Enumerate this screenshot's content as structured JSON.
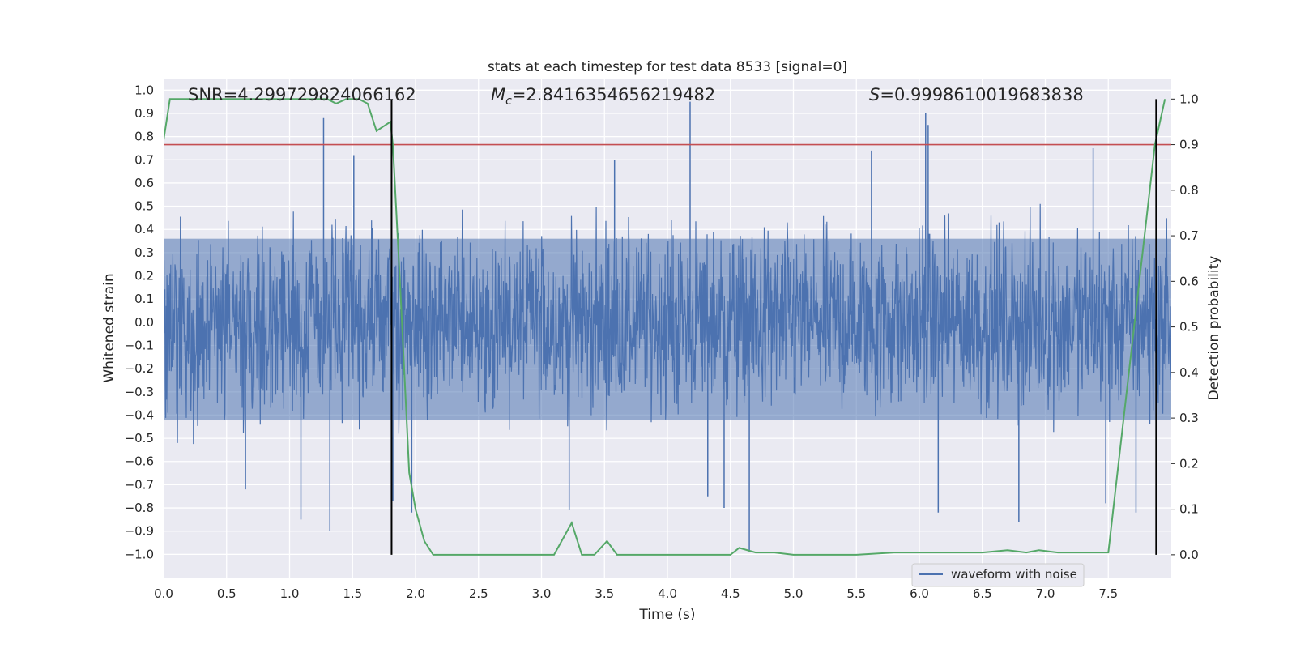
{
  "chart_data": {
    "type": "line",
    "title": "stats at each timestep for test data 8533 [signal=0]",
    "xlabel": "Time (s)",
    "ylabel": "Whitened strain",
    "y2label": "Detection probability",
    "xlim": [
      0.0,
      8.0
    ],
    "ylim": [
      -1.1,
      1.05
    ],
    "y2lim": [
      -0.05,
      1.045
    ],
    "xticks": [
      0.0,
      0.5,
      1.0,
      1.5,
      2.0,
      2.5,
      3.0,
      3.5,
      4.0,
      4.5,
      5.0,
      5.5,
      6.0,
      6.5,
      7.0,
      7.5
    ],
    "xtick_labels": [
      "0.0",
      "0.5",
      "1.0",
      "1.5",
      "2.0",
      "2.5",
      "3.0",
      "3.5",
      "4.0",
      "4.5",
      "5.0",
      "5.5",
      "6.0",
      "6.5",
      "7.0",
      "7.5"
    ],
    "yticks": [
      1.0,
      0.9,
      0.8,
      0.7,
      0.6,
      0.5,
      0.4,
      0.3,
      0.2,
      0.1,
      0.0,
      -0.1,
      -0.2,
      -0.3,
      -0.4,
      -0.5,
      -0.6,
      -0.7,
      -0.8,
      -0.9,
      -1.0
    ],
    "ytick_labels": [
      "1.0",
      "0.9",
      "0.8",
      "0.7",
      "0.6",
      "0.5",
      "0.4",
      "0.3",
      "0.2",
      "0.1",
      "0.0",
      "−0.1",
      "−0.2",
      "−0.3",
      "−0.4",
      "−0.5",
      "−0.6",
      "−0.7",
      "−0.8",
      "−0.9",
      "−1.0"
    ],
    "y2ticks": [
      1.0,
      0.9,
      0.8,
      0.7,
      0.6,
      0.5,
      0.4,
      0.3,
      0.2,
      0.1,
      0.0
    ],
    "y2tick_labels": [
      "1.0",
      "0.9",
      "0.8",
      "0.7",
      "0.6",
      "0.5",
      "0.4",
      "0.3",
      "0.2",
      "0.1",
      "0.0"
    ],
    "grid": true,
    "annotations": {
      "snr": "SNR=4.299729824066162",
      "mc_symbol": "M",
      "mc_sub": "c",
      "mc_value": "=2.8416354656219482",
      "s_symbol": "S",
      "s_value": "=0.9998610019683838"
    },
    "legend": {
      "location": "lower-right",
      "entries": [
        "waveform with noise"
      ]
    },
    "series": [
      {
        "name": "waveform with noise",
        "axis": "left",
        "color": "#4c72b0",
        "kind": "noisy-waveform",
        "typical_amplitude": 0.42,
        "spikes": [
          {
            "t": 1.27,
            "v": 0.88
          },
          {
            "t": 4.18,
            "v": 0.95
          },
          {
            "t": 6.05,
            "v": 0.9
          },
          {
            "t": 6.07,
            "v": 0.85
          },
          {
            "t": 1.51,
            "v": 0.72
          },
          {
            "t": 7.38,
            "v": 0.75
          },
          {
            "t": 3.58,
            "v": 0.7
          },
          {
            "t": 5.62,
            "v": 0.74
          },
          {
            "t": 1.32,
            "v": -0.9
          },
          {
            "t": 1.09,
            "v": -0.85
          },
          {
            "t": 4.65,
            "v": -0.99
          },
          {
            "t": 4.45,
            "v": -0.8
          },
          {
            "t": 6.79,
            "v": -0.86
          },
          {
            "t": 6.15,
            "v": -0.82
          },
          {
            "t": 3.22,
            "v": -0.81
          },
          {
            "t": 7.72,
            "v": -0.82
          },
          {
            "t": 1.82,
            "v": -0.77
          },
          {
            "t": 1.97,
            "v": -0.82
          },
          {
            "t": 0.65,
            "v": -0.72
          },
          {
            "t": 4.32,
            "v": -0.75
          },
          {
            "t": 7.48,
            "v": -0.78
          }
        ]
      },
      {
        "name": "",
        "axis": "right",
        "color": "#55a868",
        "kind": "detection-probability",
        "x": [
          0.0,
          0.05,
          0.2,
          0.5,
          0.8,
          1.1,
          1.3,
          1.37,
          1.45,
          1.55,
          1.62,
          1.69,
          1.8,
          1.82,
          1.88,
          1.95,
          2.0,
          2.07,
          2.14,
          2.22,
          2.5,
          3.0,
          3.1,
          3.24,
          3.32,
          3.42,
          3.52,
          3.6,
          4.0,
          4.2,
          4.35,
          4.5,
          4.57,
          4.7,
          4.85,
          5.0,
          5.5,
          5.8,
          6.0,
          6.5,
          6.7,
          6.85,
          6.95,
          7.1,
          7.2,
          7.5,
          7.87,
          7.95
        ],
        "y": [
          0.91,
          1.0,
          1.0,
          1.0,
          1.0,
          1.0,
          1.0,
          0.99,
          1.0,
          1.0,
          0.99,
          0.93,
          0.95,
          0.9,
          0.58,
          0.18,
          0.1,
          0.03,
          0.0,
          0.0,
          0.0,
          0.0,
          0.0,
          0.07,
          0.0,
          0.0,
          0.03,
          0.0,
          0.0,
          0.0,
          0.0,
          0.0,
          0.015,
          0.005,
          0.005,
          0.0,
          0.0,
          0.005,
          0.005,
          0.005,
          0.01,
          0.005,
          0.01,
          0.005,
          0.005,
          0.005,
          0.9,
          1.0
        ]
      },
      {
        "name": "",
        "axis": "right",
        "color": "#c44e52",
        "kind": "threshold",
        "value": 0.9
      }
    ],
    "vlines": [
      1.81,
      7.88
    ]
  }
}
